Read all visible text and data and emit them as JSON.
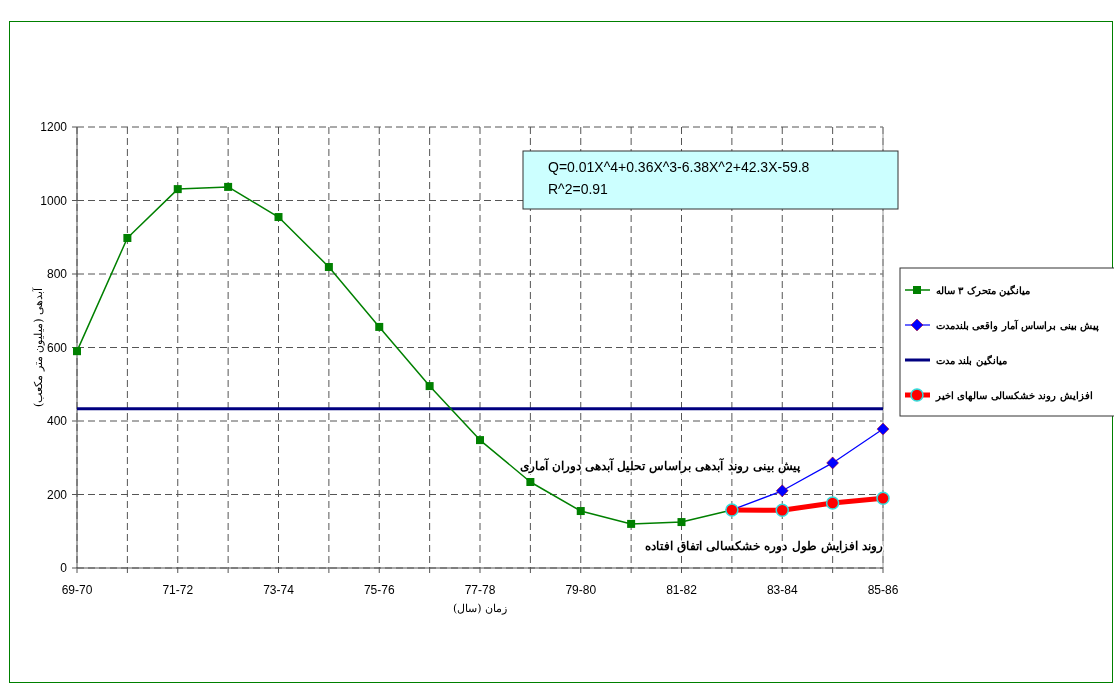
{
  "chart_data": {
    "type": "line",
    "xlabel": "زمان (سال)",
    "ylabel": "آبدهی (میلیون متر مکعب)",
    "categories": [
      "69-70",
      null,
      "71-72",
      null,
      "73-74",
      null,
      "75-76",
      null,
      "77-78",
      null,
      "79-80",
      null,
      "81-82",
      null,
      "83-84",
      null,
      "85-86"
    ],
    "series": [
      {
        "name": "میانگین متحرک ۳ ساله",
        "color": "#008000",
        "marker": "square",
        "values": [
          590,
          898,
          1031,
          1037,
          955,
          819,
          656,
          495,
          348,
          234,
          155,
          120,
          125,
          158,
          null,
          null,
          null
        ]
      },
      {
        "name": "پیش بینی براساس آمار واقعی بلندمدت",
        "color": "#0000ff",
        "marker": "diamond",
        "values": [
          null,
          null,
          null,
          null,
          null,
          null,
          null,
          null,
          null,
          null,
          null,
          null,
          null,
          158,
          210,
          286,
          378
        ]
      },
      {
        "name": "افزایش روند خشکسالی سالهای اخیر",
        "color": "#ff0000",
        "marker": "circle",
        "values": [
          null,
          null,
          null,
          null,
          null,
          null,
          null,
          null,
          null,
          null,
          null,
          null,
          null,
          158,
          157,
          177,
          190
        ]
      }
    ],
    "ref_lines": [
      {
        "axis": "y",
        "value": 433,
        "label": "میانگین بلند مدت",
        "color": "#000080"
      }
    ],
    "ylim": [
      0,
      1200
    ],
    "yticks": [
      0,
      200,
      400,
      600,
      800,
      1000,
      1200
    ],
    "grid": true,
    "legend": "right",
    "line_style": "solid",
    "annotations": [
      "Q=0.01X^4+0.36X^3-6.38X^2+42.3X-59.8\nR^2=0.91",
      "پیش بینی روند آبدهی براساس تحلیل آبدهی دوران آماری",
      "روند افزایش طول دوره خشکسالی اتفاق افتاده"
    ]
  }
}
